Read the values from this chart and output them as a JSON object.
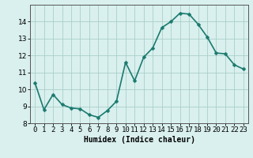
{
  "x": [
    0,
    1,
    2,
    3,
    4,
    5,
    6,
    7,
    8,
    9,
    10,
    11,
    12,
    13,
    14,
    15,
    16,
    17,
    18,
    19,
    20,
    21,
    22,
    23
  ],
  "y": [
    10.4,
    8.8,
    9.7,
    9.1,
    8.9,
    8.85,
    8.5,
    8.35,
    8.75,
    9.3,
    11.6,
    10.5,
    11.9,
    12.45,
    13.65,
    14.0,
    14.5,
    14.45,
    13.85,
    13.1,
    12.15,
    12.1,
    11.45,
    11.2
  ],
  "line_color": "#1a7a6e",
  "marker": "D",
  "marker_size": 2.5,
  "bg_color": "#d9f0ee",
  "grid_color": "#aacfca",
  "xlabel": "Humidex (Indice chaleur)",
  "ylim": [
    8,
    15
  ],
  "xlim": [
    -0.5,
    23.5
  ],
  "yticks": [
    8,
    9,
    10,
    11,
    12,
    13,
    14
  ],
  "xticks": [
    0,
    1,
    2,
    3,
    4,
    5,
    6,
    7,
    8,
    9,
    10,
    11,
    12,
    13,
    14,
    15,
    16,
    17,
    18,
    19,
    20,
    21,
    22,
    23
  ],
  "xlabel_fontsize": 7,
  "tick_fontsize": 6.5,
  "line_width": 1.2,
  "spine_color": "#555555"
}
